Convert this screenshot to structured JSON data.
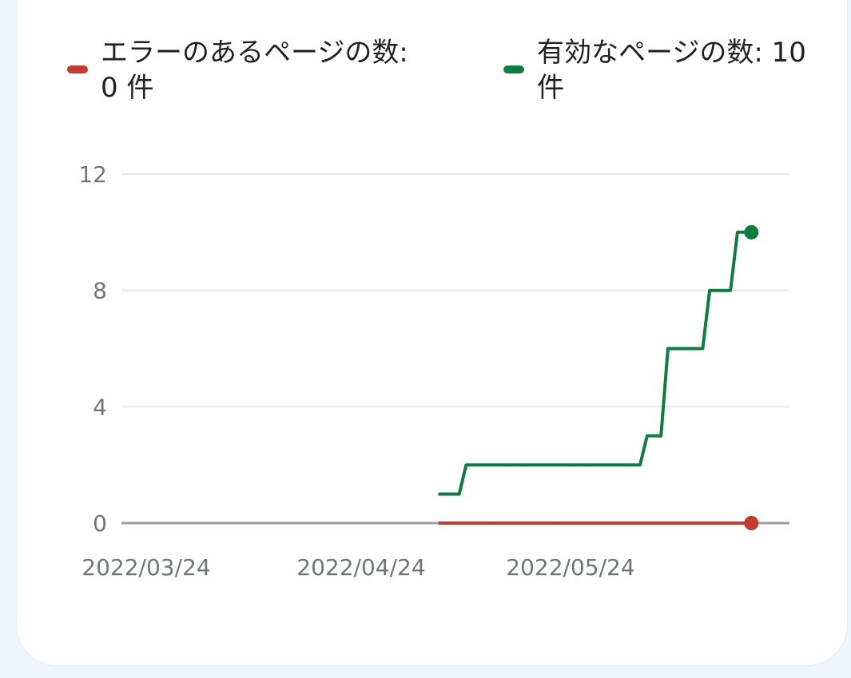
{
  "legend": {
    "errors": {
      "text": "エラーのあるページの数: 0 件",
      "color": "#c5392f"
    },
    "valid": {
      "text": "有効なページの数: 10 件",
      "color": "#0d7d3e"
    }
  },
  "chart_data": {
    "type": "line",
    "step": true,
    "y_ticks": [
      0,
      4,
      8,
      12
    ],
    "ylim": [
      0,
      12
    ],
    "x_ticks": [
      "2022/03/24",
      "2022/04/24",
      "2022/05/24"
    ],
    "grid": true,
    "legend_position": "top",
    "series": [
      {
        "name": "有効なページの数",
        "color": "#0d7d3e",
        "points": [
          [
            "2022/05/05",
            1
          ],
          [
            "2022/05/08",
            1
          ],
          [
            "2022/05/09",
            2
          ],
          [
            "2022/06/03",
            2
          ],
          [
            "2022/06/04",
            3
          ],
          [
            "2022/06/06",
            3
          ],
          [
            "2022/06/07",
            6
          ],
          [
            "2022/06/12",
            6
          ],
          [
            "2022/06/13",
            8
          ],
          [
            "2022/06/16",
            8
          ],
          [
            "2022/06/17",
            10
          ],
          [
            "2022/06/19",
            10
          ]
        ]
      },
      {
        "name": "エラーのあるページの数",
        "color": "#c5392f",
        "points": [
          [
            "2022/05/05",
            0
          ],
          [
            "2022/06/19",
            0
          ]
        ]
      }
    ]
  }
}
